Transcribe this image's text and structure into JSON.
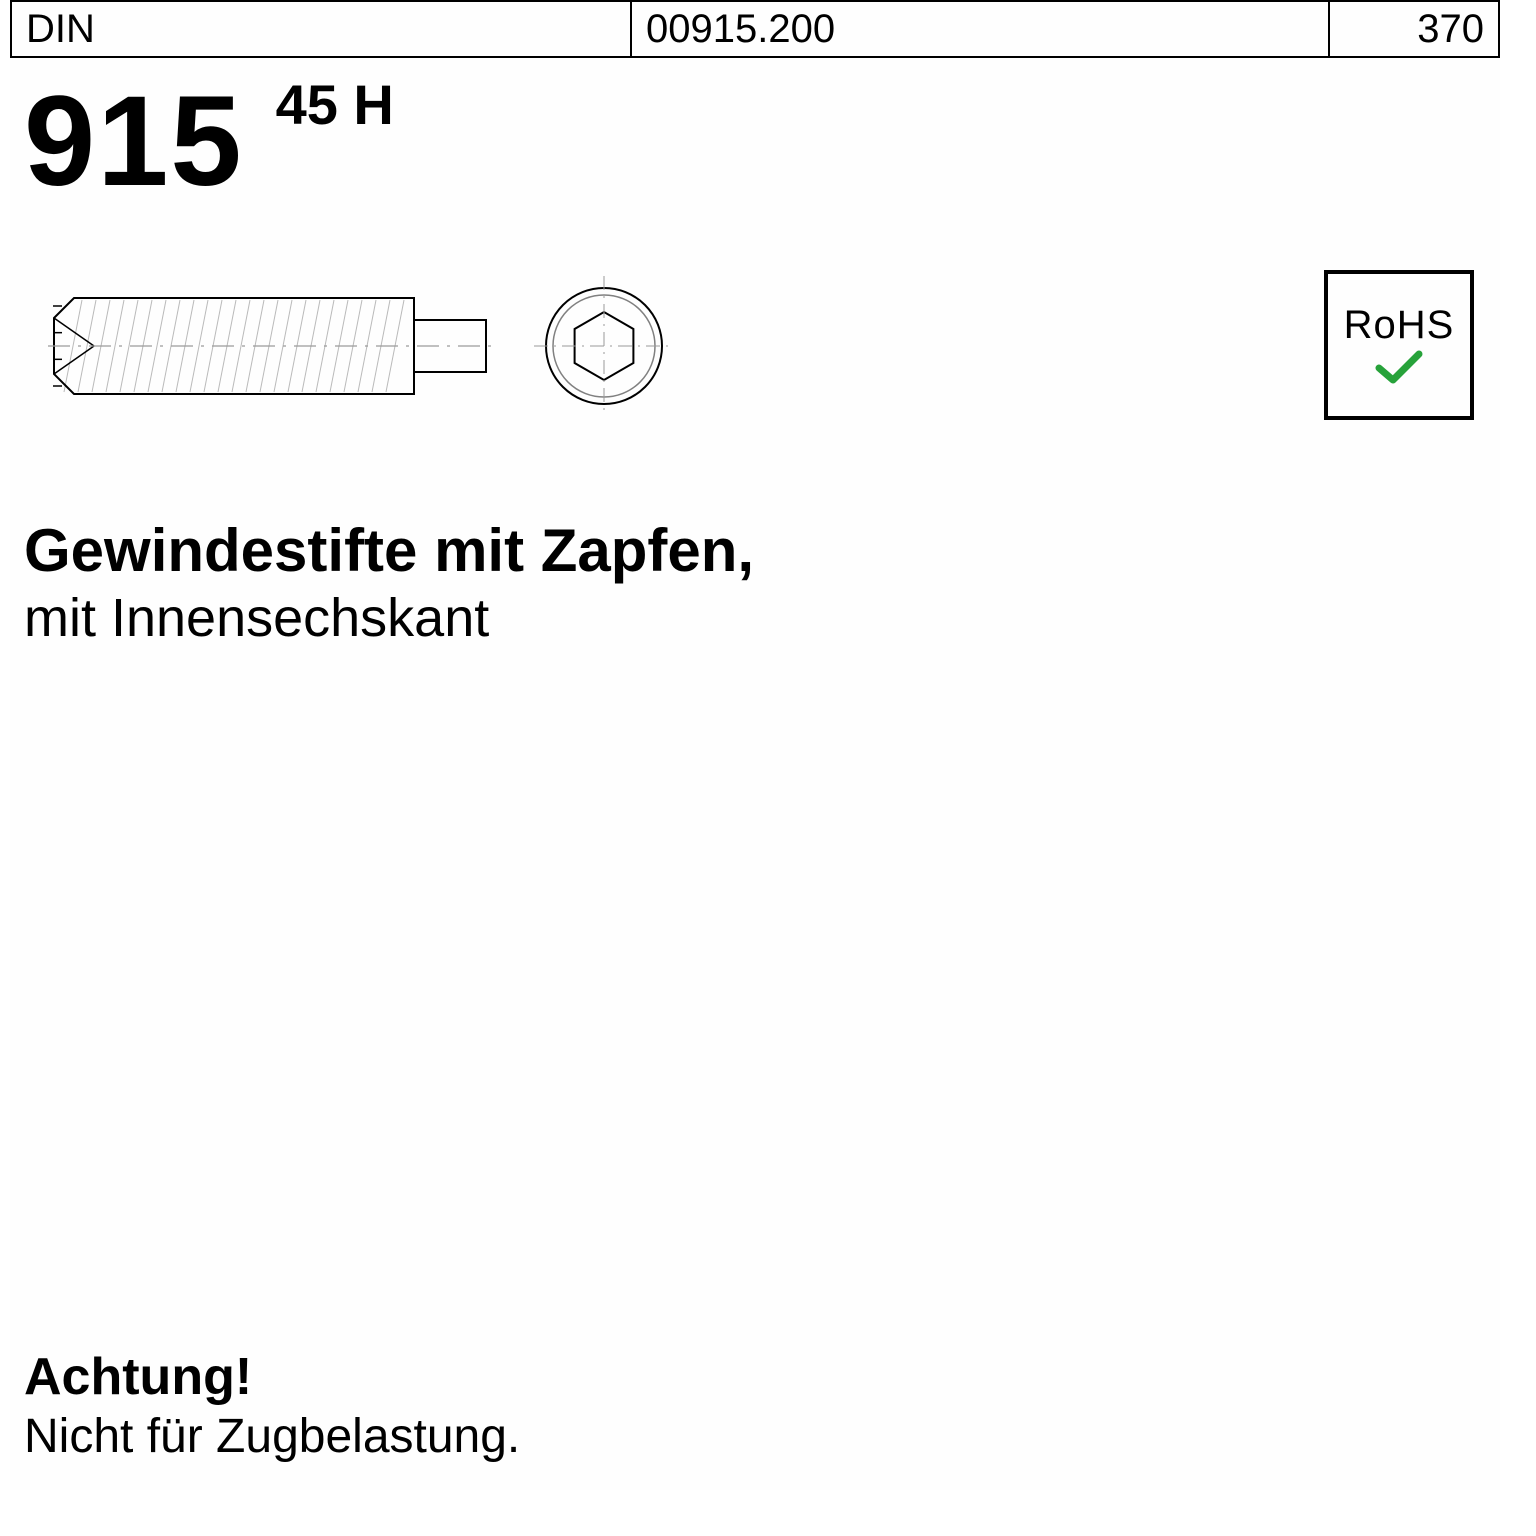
{
  "header": {
    "standard_label": "DIN",
    "article_no": "00915.200",
    "page_no": "370",
    "standard_number": "915",
    "grade": "45 H"
  },
  "rohs": {
    "label": "RoHS",
    "check_color": "#27a23a",
    "border_color": "#000000"
  },
  "description": {
    "line1": "Gewindestifte mit Zapfen,",
    "line2": "mit Innensechskant"
  },
  "warning": {
    "title": "Achtung!",
    "text": "Nicht für Zugbelastung."
  },
  "drawing": {
    "side": {
      "body_length": 360,
      "body_height": 96,
      "pin_length": 72,
      "pin_height": 52,
      "thread_pitch": 14,
      "centerline_color": "#9a9a9a",
      "outline_color": "#000000",
      "fill_color": "#ffffff",
      "thread_color": "#bababa"
    },
    "front": {
      "outer_radius": 58,
      "hex_radius": 34,
      "gap": 60,
      "outline_color": "#000000",
      "inner_ring_color": "#808080"
    }
  },
  "colors": {
    "text": "#000000",
    "background": "#fefefe"
  }
}
